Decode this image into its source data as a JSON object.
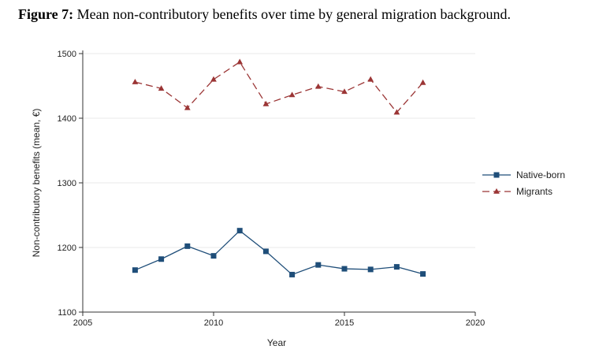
{
  "figure": {
    "label": "Figure 7:",
    "title": "Mean non-contributory benefits over time by general migration background."
  },
  "chart_data": {
    "type": "line",
    "xlabel": "Year",
    "ylabel": "Non-contributory benefits (mean, €)",
    "xlim": [
      2005,
      2020
    ],
    "ylim": [
      1100,
      1500
    ],
    "xticks": [
      2005,
      2010,
      2015,
      2020
    ],
    "yticks": [
      1100,
      1200,
      1300,
      1400,
      1500
    ],
    "grid": "horizontal",
    "legend_position": "right",
    "series": [
      {
        "name": "Native-born",
        "color": "#1f4e79",
        "marker": "square",
        "dash": "solid",
        "x": [
          2007,
          2008,
          2009,
          2010,
          2011,
          2012,
          2013,
          2014,
          2015,
          2016,
          2017,
          2018
        ],
        "y": [
          1165,
          1182,
          1202,
          1187,
          1226,
          1194,
          1158,
          1173,
          1167,
          1166,
          1170,
          1159
        ]
      },
      {
        "name": "Migrants",
        "color": "#9b3535",
        "marker": "triangle",
        "dash": "dashed",
        "x": [
          2007,
          2008,
          2009,
          2010,
          2011,
          2012,
          2013,
          2014,
          2015,
          2016,
          2017,
          2018
        ],
        "y": [
          1456,
          1446,
          1416,
          1460,
          1487,
          1422,
          1436,
          1449,
          1441,
          1460,
          1409,
          1455
        ]
      }
    ]
  }
}
